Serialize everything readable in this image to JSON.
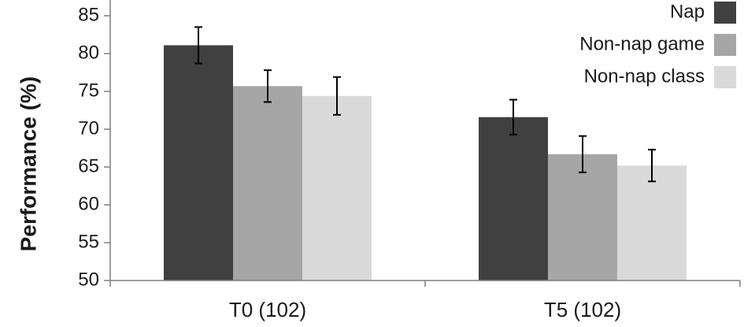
{
  "chart_data": {
    "type": "bar",
    "ylabel": "Performance (%)",
    "ylim": [
      50,
      85
    ],
    "yticks": [
      50,
      55,
      60,
      65,
      70,
      75,
      80,
      85
    ],
    "grid": false,
    "legend_position": "top-right",
    "categories": [
      "T0 (102)",
      "T5 (102)"
    ],
    "series": [
      {
        "name": "Nap",
        "color": "#404040",
        "values": [
          81.1,
          71.6
        ],
        "errors": [
          2.4,
          2.3
        ]
      },
      {
        "name": "Non-nap game",
        "color": "#a6a6a6",
        "values": [
          75.7,
          66.7
        ],
        "errors": [
          2.1,
          2.4
        ]
      },
      {
        "name": "Non-nap class",
        "color": "#d9d9d9",
        "values": [
          74.4,
          65.2
        ],
        "errors": [
          2.5,
          2.1
        ]
      }
    ]
  }
}
